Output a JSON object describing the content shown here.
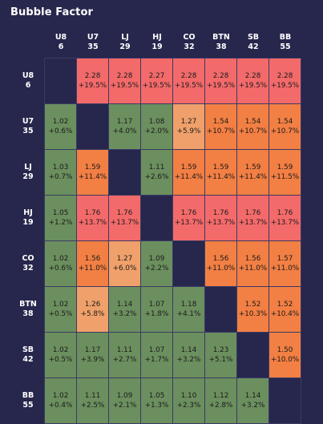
{
  "header": {
    "title": "Bubble Factor"
  },
  "colors": {
    "background": "#27274d",
    "empty": "#27274d",
    "red": "#f36a6a",
    "orange": "#f27f43",
    "light_orange": "#f0a06a",
    "green": "#6b8f5e",
    "text_dark": "#1b1b1b"
  },
  "chart_data": {
    "type": "heatmap",
    "title": "Bubble Factor",
    "columns": [
      {
        "pos": "U8",
        "stack": "6"
      },
      {
        "pos": "U7",
        "stack": "35"
      },
      {
        "pos": "LJ",
        "stack": "29"
      },
      {
        "pos": "HJ",
        "stack": "19"
      },
      {
        "pos": "CO",
        "stack": "32"
      },
      {
        "pos": "BTN",
        "stack": "38"
      },
      {
        "pos": "SB",
        "stack": "42"
      },
      {
        "pos": "BB",
        "stack": "55"
      }
    ],
    "rows": [
      {
        "pos": "U8",
        "stack": "6"
      },
      {
        "pos": "U7",
        "stack": "35"
      },
      {
        "pos": "LJ",
        "stack": "29"
      },
      {
        "pos": "HJ",
        "stack": "19"
      },
      {
        "pos": "CO",
        "stack": "32"
      },
      {
        "pos": "BTN",
        "stack": "38"
      },
      {
        "pos": "SB",
        "stack": "42"
      },
      {
        "pos": "BB",
        "stack": "55"
      }
    ],
    "cells": [
      [
        null,
        {
          "v": "2.28",
          "d": "+19.5%",
          "c": "red"
        },
        {
          "v": "2.28",
          "d": "+19.5%",
          "c": "red"
        },
        {
          "v": "2.27",
          "d": "+19.5%",
          "c": "red"
        },
        {
          "v": "2.28",
          "d": "+19.5%",
          "c": "red"
        },
        {
          "v": "2.28",
          "d": "+19.5%",
          "c": "red"
        },
        {
          "v": "2.28",
          "d": "+19.5%",
          "c": "red"
        },
        {
          "v": "2.28",
          "d": "+19.5%",
          "c": "red"
        }
      ],
      [
        {
          "v": "1.02",
          "d": "+0.6%",
          "c": "green"
        },
        null,
        {
          "v": "1.17",
          "d": "+4.0%",
          "c": "green"
        },
        {
          "v": "1.08",
          "d": "+2.0%",
          "c": "green"
        },
        {
          "v": "1.27",
          "d": "+5.9%",
          "c": "light_orange"
        },
        {
          "v": "1.54",
          "d": "+10.7%",
          "c": "orange"
        },
        {
          "v": "1.54",
          "d": "+10.7%",
          "c": "orange"
        },
        {
          "v": "1.54",
          "d": "+10.7%",
          "c": "orange"
        }
      ],
      [
        {
          "v": "1.03",
          "d": "+0.7%",
          "c": "green"
        },
        {
          "v": "1.59",
          "d": "+11.4%",
          "c": "orange"
        },
        null,
        {
          "v": "1.11",
          "d": "+2.6%",
          "c": "green"
        },
        {
          "v": "1.59",
          "d": "+11.4%",
          "c": "orange"
        },
        {
          "v": "1.59",
          "d": "+11.4%",
          "c": "orange"
        },
        {
          "v": "1.59",
          "d": "+11.4%",
          "c": "orange"
        },
        {
          "v": "1.59",
          "d": "+11.5%",
          "c": "orange"
        }
      ],
      [
        {
          "v": "1.05",
          "d": "+1.2%",
          "c": "green"
        },
        {
          "v": "1.76",
          "d": "+13.7%",
          "c": "red"
        },
        {
          "v": "1.76",
          "d": "+13.7%",
          "c": "red"
        },
        null,
        {
          "v": "1.76",
          "d": "+13.7%",
          "c": "red"
        },
        {
          "v": "1.76",
          "d": "+13.7%",
          "c": "red"
        },
        {
          "v": "1.76",
          "d": "+13.7%",
          "c": "red"
        },
        {
          "v": "1.76",
          "d": "+13.7%",
          "c": "red"
        }
      ],
      [
        {
          "v": "1.02",
          "d": "+0.6%",
          "c": "green"
        },
        {
          "v": "1.56",
          "d": "+11.0%",
          "c": "orange"
        },
        {
          "v": "1.27",
          "d": "+6.0%",
          "c": "light_orange"
        },
        {
          "v": "1.09",
          "d": "+2.2%",
          "c": "green"
        },
        null,
        {
          "v": "1.56",
          "d": "+11.0%",
          "c": "orange"
        },
        {
          "v": "1.56",
          "d": "+11.0%",
          "c": "orange"
        },
        {
          "v": "1.57",
          "d": "+11.0%",
          "c": "orange"
        }
      ],
      [
        {
          "v": "1.02",
          "d": "+0.5%",
          "c": "green"
        },
        {
          "v": "1.26",
          "d": "+5.8%",
          "c": "light_orange"
        },
        {
          "v": "1.14",
          "d": "+3.2%",
          "c": "green"
        },
        {
          "v": "1.07",
          "d": "+1.8%",
          "c": "green"
        },
        {
          "v": "1.18",
          "d": "+4.1%",
          "c": "green"
        },
        null,
        {
          "v": "1.52",
          "d": "+10.3%",
          "c": "orange"
        },
        {
          "v": "1.52",
          "d": "+10.4%",
          "c": "orange"
        }
      ],
      [
        {
          "v": "1.02",
          "d": "+0.5%",
          "c": "green"
        },
        {
          "v": "1.17",
          "d": "+3.9%",
          "c": "green"
        },
        {
          "v": "1.11",
          "d": "+2.7%",
          "c": "green"
        },
        {
          "v": "1.07",
          "d": "+1.7%",
          "c": "green"
        },
        {
          "v": "1.14",
          "d": "+3.2%",
          "c": "green"
        },
        {
          "v": "1.23",
          "d": "+5.1%",
          "c": "green"
        },
        null,
        {
          "v": "1.50",
          "d": "+10.0%",
          "c": "orange"
        }
      ],
      [
        {
          "v": "1.02",
          "d": "+0.4%",
          "c": "green"
        },
        {
          "v": "1.11",
          "d": "+2.5%",
          "c": "green"
        },
        {
          "v": "1.09",
          "d": "+2.1%",
          "c": "green"
        },
        {
          "v": "1.05",
          "d": "+1.3%",
          "c": "green"
        },
        {
          "v": "1.10",
          "d": "+2.3%",
          "c": "green"
        },
        {
          "v": "1.12",
          "d": "+2.8%",
          "c": "green"
        },
        {
          "v": "1.14",
          "d": "+3.2%",
          "c": "green"
        },
        null
      ]
    ]
  }
}
